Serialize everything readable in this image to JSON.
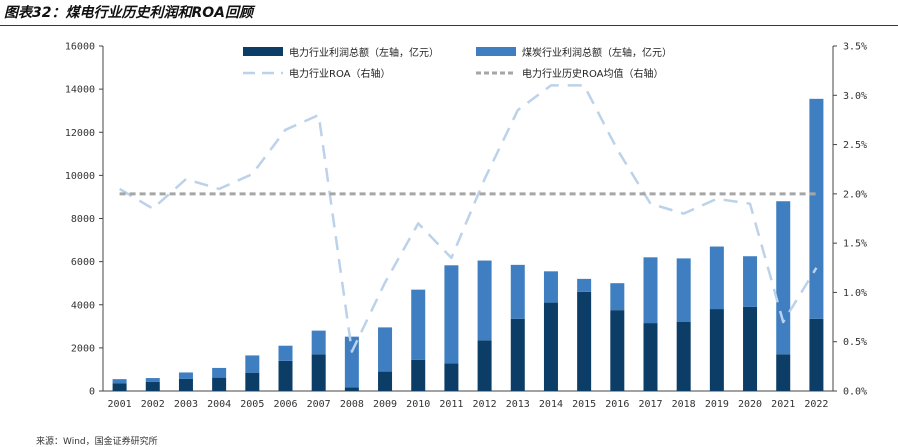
{
  "header": {
    "title": "图表32：煤电行业历史利润和ROA回顾"
  },
  "footer": {
    "source": "来源：Wind，国金证券研究所"
  },
  "chart_data": {
    "type": "bar",
    "stacked": true,
    "categories": [
      "2001",
      "2002",
      "2003",
      "2004",
      "2005",
      "2006",
      "2007",
      "2008",
      "2009",
      "2010",
      "2011",
      "2012",
      "2013",
      "2014",
      "2015",
      "2016",
      "2017",
      "2018",
      "2019",
      "2020",
      "2021",
      "2022"
    ],
    "series": [
      {
        "name": "电力行业利润总额（左轴，亿元）",
        "axis": "left",
        "kind": "bar",
        "color": "#0b3d66",
        "values": [
          350,
          420,
          560,
          620,
          850,
          1400,
          1700,
          170,
          900,
          1450,
          1280,
          2350,
          3350,
          4100,
          4600,
          3750,
          3150,
          3200,
          3800,
          3900,
          1700,
          3350
        ]
      },
      {
        "name": "煤炭行业利润总额（左轴，亿元）",
        "axis": "left",
        "kind": "bar",
        "color": "#3f7fc1",
        "values": [
          200,
          180,
          300,
          450,
          800,
          700,
          1100,
          2350,
          2050,
          3250,
          4550,
          3700,
          2500,
          1450,
          600,
          1250,
          3050,
          2950,
          2900,
          2350,
          7100,
          10200
        ]
      },
      {
        "name": "电力行业ROA（右轴）",
        "axis": "right",
        "kind": "line",
        "style": "dashed",
        "color": "#bcd2ea",
        "values": [
          2.05,
          1.85,
          2.15,
          2.05,
          2.2,
          2.65,
          2.8,
          0.4,
          1.1,
          1.7,
          1.35,
          2.15,
          2.85,
          3.1,
          3.1,
          2.45,
          1.9,
          1.8,
          1.95,
          1.9,
          0.7,
          1.25
        ]
      },
      {
        "name": "电力行业历史ROA均值（右轴）",
        "axis": "right",
        "kind": "line",
        "style": "dotted",
        "color": "#a6a6a6",
        "values": [
          2.0,
          2.0,
          2.0,
          2.0,
          2.0,
          2.0,
          2.0,
          2.0,
          2.0,
          2.0,
          2.0,
          2.0,
          2.0,
          2.0,
          2.0,
          2.0,
          2.0,
          2.0,
          2.0,
          2.0,
          2.0,
          2.0
        ]
      }
    ],
    "y_left": {
      "range": [
        0,
        16000
      ],
      "ticks": [
        "0",
        "2000",
        "4000",
        "6000",
        "8000",
        "10000",
        "12000",
        "14000",
        "16000"
      ]
    },
    "y_right": {
      "range": [
        0,
        3.5
      ],
      "ticks": [
        "0.0%",
        "0.5%",
        "1.0%",
        "1.5%",
        "2.0%",
        "2.5%",
        "3.0%",
        "3.5%"
      ]
    },
    "legend": {
      "position": "top"
    },
    "grid": false
  }
}
